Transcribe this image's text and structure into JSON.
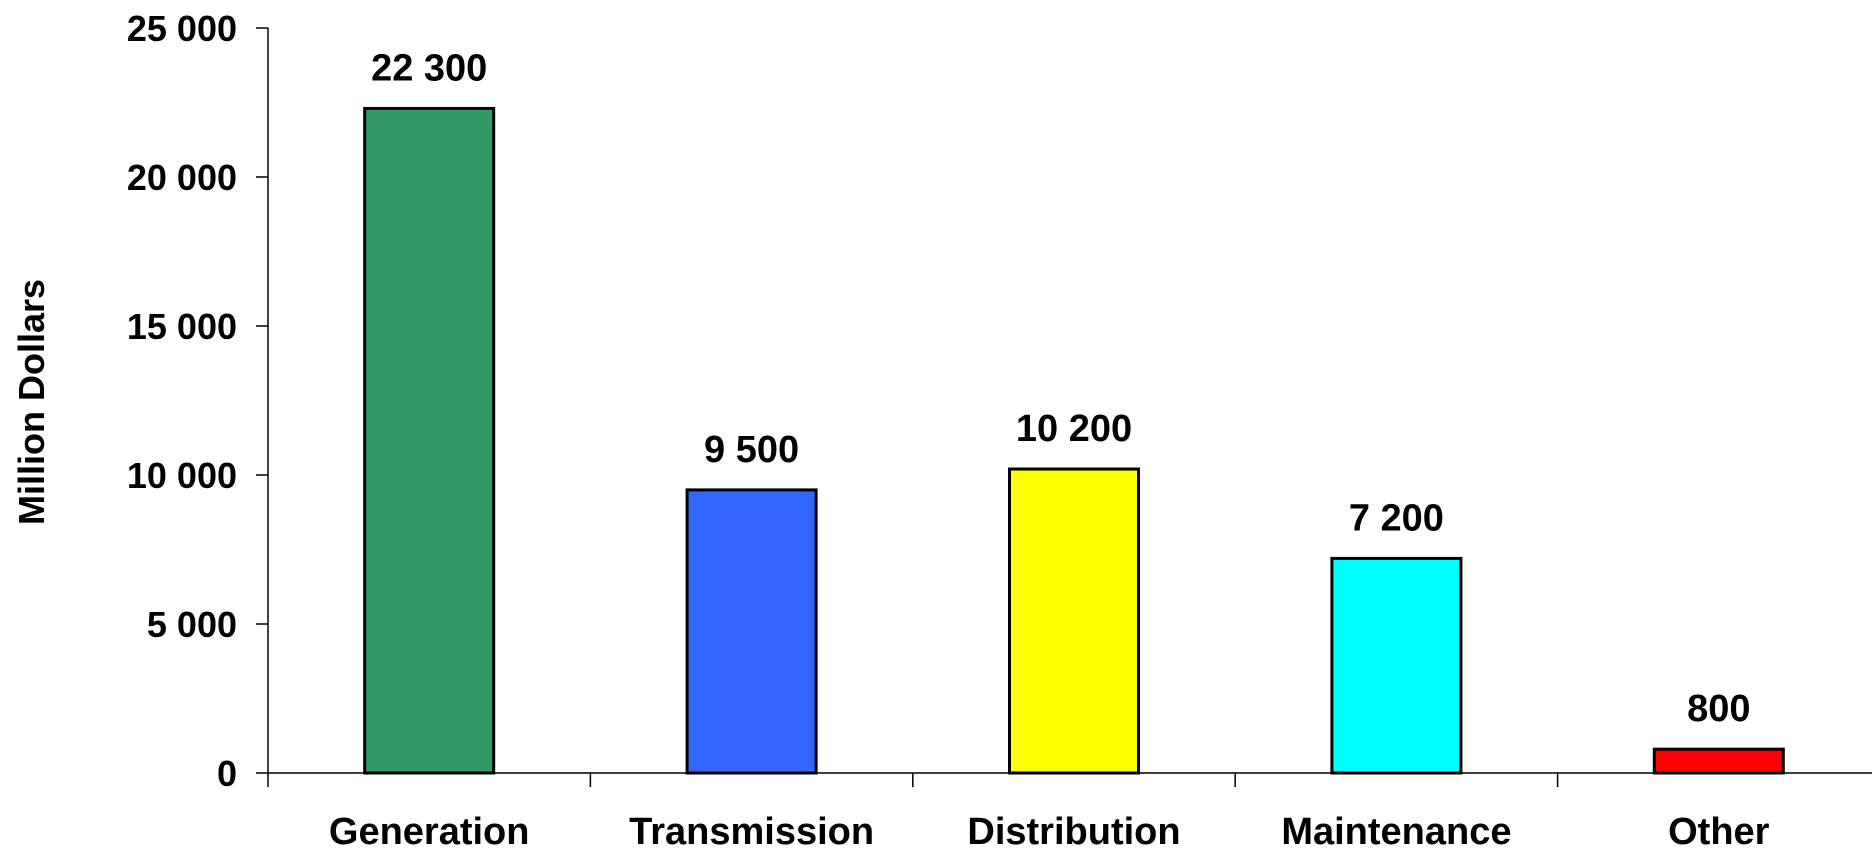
{
  "chart_data": {
    "type": "bar",
    "title": "",
    "xlabel": "",
    "ylabel": "Million Dollars",
    "ylim": [
      0,
      25000
    ],
    "yticks": [
      0,
      5000,
      10000,
      15000,
      20000,
      25000
    ],
    "ytick_labels": [
      "0",
      "5 000",
      "10 000",
      "15 000",
      "20 000",
      "25 000"
    ],
    "categories": [
      "Generation",
      "Transmission",
      "Distribution",
      "Maintenance",
      "Other"
    ],
    "values": [
      22300,
      9500,
      10200,
      7200,
      800
    ],
    "value_labels": [
      "22 300",
      "9 500",
      "10 200",
      "7 200",
      "800"
    ],
    "colors": [
      "#339966",
      "#3366FF",
      "#FFFF00",
      "#00FFFF",
      "#FF0000"
    ],
    "grid": false,
    "legend": "none"
  }
}
